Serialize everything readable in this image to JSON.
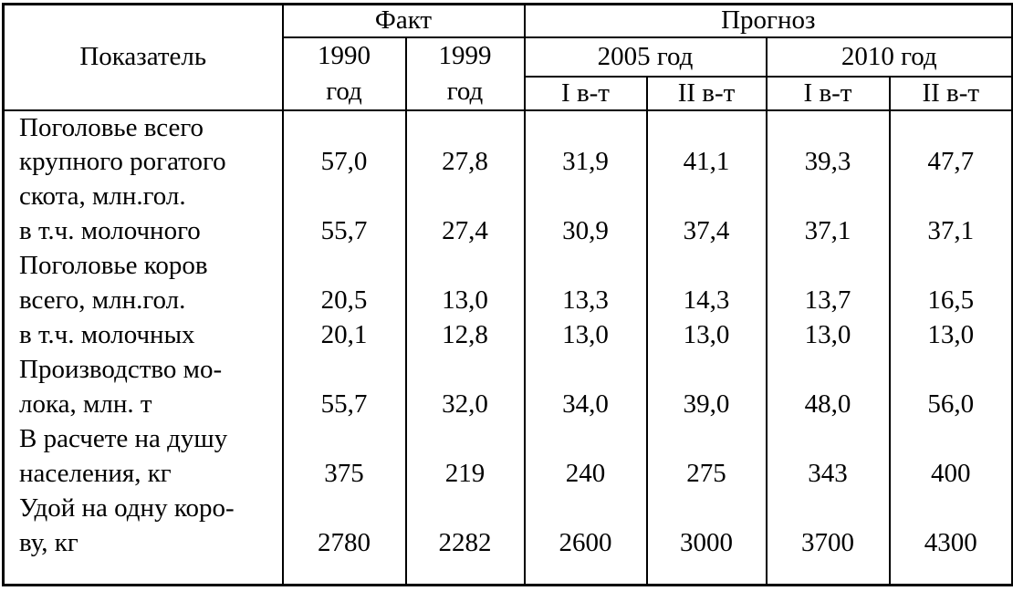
{
  "colors": {
    "background": "#ffffff",
    "border": "#000000",
    "text": "#000000"
  },
  "table": {
    "header": {
      "indicator": "Показатель",
      "fact": "Факт",
      "forecast": "Прогноз",
      "col_1990": "1990\nгод",
      "col_1999": "1999\nгод",
      "col_2005": "2005 год",
      "col_2010": "2010 год",
      "variants": [
        "I в-т",
        "II в-т",
        "I в-т",
        "II в-т"
      ]
    },
    "rows": [
      {
        "label_lines": [
          "Поголовье всего",
          "крупного рогатого",
          "скота, млн.гол."
        ],
        "value_line": 1,
        "values": [
          "57,0",
          "27,8",
          "31,9",
          "41,1",
          "39,3",
          "47,7"
        ]
      },
      {
        "label_lines": [
          "в т.ч. молочного"
        ],
        "value_line": 0,
        "values": [
          "55,7",
          "27,4",
          "30,9",
          "37,4",
          "37,1",
          "37,1"
        ]
      },
      {
        "label_lines": [
          "Поголовье коров",
          "всего, млн.гол."
        ],
        "value_line": 1,
        "values": [
          "20,5",
          "13,0",
          "13,3",
          "14,3",
          "13,7",
          "16,5"
        ]
      },
      {
        "label_lines": [
          "в т.ч. молочных"
        ],
        "value_line": 0,
        "values": [
          "20,1",
          "12,8",
          "13,0",
          "13,0",
          "13,0",
          "13,0"
        ]
      },
      {
        "label_lines": [
          "Производство мо-",
          "лока, млн. т"
        ],
        "value_line": 1,
        "values": [
          "55,7",
          "32,0",
          "34,0",
          "39,0",
          "48,0",
          "56,0"
        ]
      },
      {
        "label_lines": [
          "В расчете на душу",
          "населения, кг"
        ],
        "value_line": 1,
        "values": [
          "375",
          "219",
          "240",
          "275",
          "343",
          "400"
        ]
      },
      {
        "label_lines": [
          "Удой на одну коро-",
          "ву, кг"
        ],
        "value_line": 1,
        "values": [
          "2780",
          "2282",
          "2600",
          "3000",
          "3700",
          "4300"
        ]
      }
    ]
  }
}
